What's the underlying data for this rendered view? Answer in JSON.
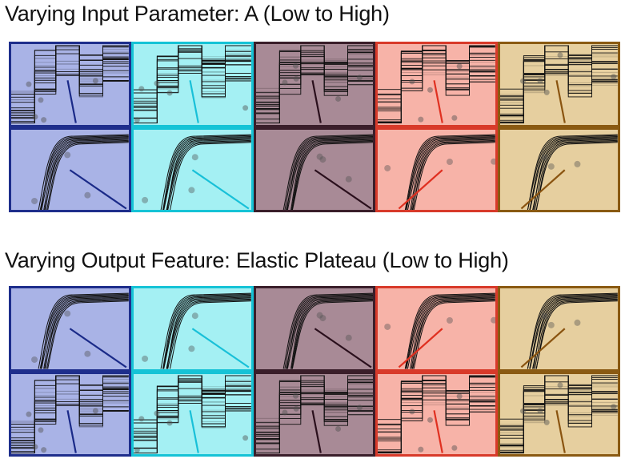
{
  "titles": {
    "top": "Varying Input Parameter: A (Low to High)",
    "bottom": "Varying Output Feature: Elastic Plateau (Low to High)"
  },
  "colors": {
    "fills": [
      "#a9b3e6",
      "#a4f0f3",
      "#a88a96",
      "#f7b3a8",
      "#e6cf9f"
    ],
    "borders": [
      "#1e2e8c",
      "#15c3d6",
      "#3a1e2a",
      "#d83a2a",
      "#8a5a12"
    ],
    "lines": [
      "#1a2a88",
      "#18c0d8",
      "#2a0f1c",
      "#e03020",
      "#8a5410"
    ]
  },
  "grids": {
    "top": [
      "stepped",
      "curve"
    ],
    "bottom": [
      "curve",
      "stepped"
    ]
  }
}
